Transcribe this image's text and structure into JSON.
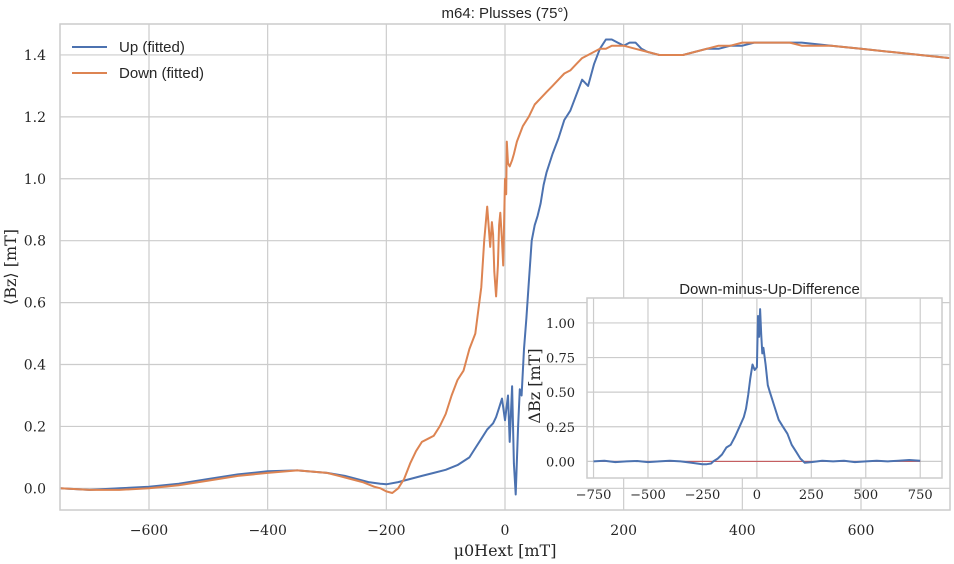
{
  "chart_data": [
    {
      "type": "line",
      "title": "m64: Plusses (75°)",
      "xlabel": "μ0Hext [mT]",
      "ylabel": "⟨Bz⟩ [mT]",
      "xlim": [
        -750,
        750
      ],
      "ylim": [
        -0.07,
        1.5
      ],
      "xticks": [
        -600,
        -400,
        -200,
        0,
        200,
        400,
        600
      ],
      "xtick_labels": [
        "−600",
        "−400",
        "−200",
        "0",
        "200",
        "400",
        "600"
      ],
      "yticks": [
        0.0,
        0.2,
        0.4,
        0.6,
        0.8,
        1.0,
        1.2,
        1.4
      ],
      "ytick_labels": [
        "0.0",
        "0.2",
        "0.4",
        "0.6",
        "0.8",
        "1.0",
        "1.2",
        "1.4"
      ],
      "grid": true,
      "legend": "top-left",
      "series": [
        {
          "name": "Up (fitted)",
          "color": "#4c72b0",
          "x": [
            -750,
            -700,
            -650,
            -600,
            -550,
            -500,
            -450,
            -400,
            -350,
            -300,
            -270,
            -250,
            -230,
            -210,
            -200,
            -180,
            -160,
            -140,
            -120,
            -100,
            -80,
            -60,
            -50,
            -40,
            -30,
            -20,
            -15,
            -10,
            -5,
            0,
            5,
            8,
            12,
            15,
            18,
            22,
            25,
            28,
            32,
            36,
            40,
            45,
            50,
            55,
            60,
            65,
            70,
            80,
            90,
            100,
            110,
            120,
            130,
            140,
            150,
            160,
            170,
            180,
            190,
            200,
            210,
            220,
            230,
            240,
            260,
            280,
            300,
            320,
            340,
            360,
            380,
            400,
            420,
            450,
            480,
            500,
            550,
            600,
            650,
            700,
            750
          ],
          "y": [
            0.0,
            -0.005,
            0.0,
            0.005,
            0.015,
            0.03,
            0.045,
            0.055,
            0.058,
            0.05,
            0.04,
            0.03,
            0.02,
            0.015,
            0.013,
            0.02,
            0.03,
            0.04,
            0.05,
            0.06,
            0.075,
            0.1,
            0.13,
            0.16,
            0.19,
            0.21,
            0.23,
            0.26,
            0.29,
            0.22,
            0.3,
            0.15,
            0.33,
            0.08,
            -0.02,
            0.2,
            0.32,
            0.3,
            0.45,
            0.55,
            0.66,
            0.8,
            0.85,
            0.88,
            0.92,
            0.98,
            1.02,
            1.08,
            1.13,
            1.19,
            1.22,
            1.27,
            1.32,
            1.3,
            1.37,
            1.42,
            1.45,
            1.45,
            1.44,
            1.43,
            1.44,
            1.44,
            1.42,
            1.41,
            1.4,
            1.4,
            1.4,
            1.41,
            1.42,
            1.42,
            1.43,
            1.43,
            1.44,
            1.44,
            1.44,
            1.44,
            1.43,
            1.42,
            1.41,
            1.4,
            1.39
          ]
        },
        {
          "name": "Down (fitted)",
          "color": "#dd8452",
          "x": [
            -750,
            -700,
            -650,
            -600,
            -550,
            -500,
            -450,
            -400,
            -350,
            -300,
            -280,
            -260,
            -240,
            -220,
            -210,
            -200,
            -190,
            -180,
            -170,
            -160,
            -150,
            -140,
            -130,
            -120,
            -110,
            -100,
            -90,
            -80,
            -70,
            -60,
            -50,
            -40,
            -35,
            -30,
            -25,
            -22,
            -20,
            -18,
            -15,
            -12,
            -10,
            -8,
            -5,
            -3,
            0,
            2,
            3,
            5,
            8,
            12,
            15,
            20,
            30,
            40,
            50,
            60,
            70,
            80,
            90,
            100,
            110,
            120,
            130,
            140,
            150,
            160,
            170,
            180,
            190,
            200,
            220,
            240,
            260,
            280,
            300,
            320,
            340,
            360,
            380,
            400,
            420,
            450,
            480,
            500,
            550,
            600,
            650,
            700,
            750
          ],
          "y": [
            0.0,
            -0.005,
            -0.005,
            0.0,
            0.01,
            0.025,
            0.04,
            0.05,
            0.058,
            0.05,
            0.04,
            0.03,
            0.02,
            0.005,
            0.0,
            -0.01,
            -0.015,
            0.0,
            0.03,
            0.08,
            0.12,
            0.15,
            0.16,
            0.17,
            0.2,
            0.24,
            0.3,
            0.35,
            0.38,
            0.45,
            0.5,
            0.65,
            0.8,
            0.91,
            0.78,
            0.86,
            0.82,
            0.7,
            0.62,
            0.72,
            0.85,
            0.89,
            0.8,
            0.72,
            1.0,
            0.95,
            1.12,
            1.05,
            1.04,
            1.06,
            1.08,
            1.12,
            1.17,
            1.2,
            1.24,
            1.26,
            1.28,
            1.3,
            1.32,
            1.34,
            1.35,
            1.37,
            1.39,
            1.4,
            1.41,
            1.42,
            1.42,
            1.43,
            1.43,
            1.43,
            1.42,
            1.41,
            1.4,
            1.4,
            1.4,
            1.41,
            1.42,
            1.43,
            1.43,
            1.44,
            1.44,
            1.44,
            1.44,
            1.43,
            1.43,
            1.42,
            1.41,
            1.4,
            1.39
          ]
        }
      ]
    },
    {
      "type": "line",
      "title": "Down-minus-Up-Difference",
      "xlabel": "",
      "ylabel": "ΔBz [mT]",
      "xlim": [
        -780,
        850
      ],
      "ylim": [
        -0.12,
        1.18
      ],
      "xticks": [
        -750,
        -500,
        -250,
        0,
        250,
        500,
        750
      ],
      "xtick_labels": [
        "−750",
        "−500",
        "−250",
        "0",
        "250",
        "500",
        "750"
      ],
      "yticks": [
        0.0,
        0.25,
        0.5,
        0.75,
        1.0
      ],
      "ytick_labels": [
        "0.00",
        "0.25",
        "0.50",
        "0.75",
        "1.00"
      ],
      "grid": true,
      "zero_line_color": "#c44e52",
      "series": [
        {
          "color": "#4c72b0",
          "x": [
            -750,
            -700,
            -650,
            -600,
            -550,
            -500,
            -450,
            -400,
            -350,
            -300,
            -250,
            -230,
            -210,
            -200,
            -180,
            -160,
            -140,
            -120,
            -100,
            -80,
            -60,
            -50,
            -40,
            -30,
            -20,
            -10,
            0,
            5,
            10,
            15,
            20,
            25,
            30,
            40,
            50,
            60,
            70,
            80,
            90,
            100,
            120,
            140,
            160,
            180,
            200,
            220,
            250,
            300,
            350,
            400,
            450,
            500,
            550,
            600,
            650,
            700,
            750
          ],
          "y": [
            0.0,
            0.005,
            -0.005,
            0.0,
            0.003,
            -0.005,
            0.0,
            0.005,
            0.0,
            -0.01,
            -0.02,
            -0.02,
            -0.015,
            0.0,
            0.02,
            0.05,
            0.1,
            0.12,
            0.18,
            0.25,
            0.32,
            0.38,
            0.48,
            0.6,
            0.7,
            0.66,
            0.68,
            1.05,
            0.9,
            1.1,
            0.92,
            0.78,
            0.82,
            0.7,
            0.55,
            0.5,
            0.45,
            0.4,
            0.35,
            0.3,
            0.25,
            0.2,
            0.12,
            0.07,
            0.02,
            -0.01,
            -0.005,
            0.005,
            0.0,
            0.005,
            -0.005,
            0.0,
            0.005,
            0.0,
            0.005,
            0.01,
            0.005
          ]
        }
      ]
    }
  ]
}
